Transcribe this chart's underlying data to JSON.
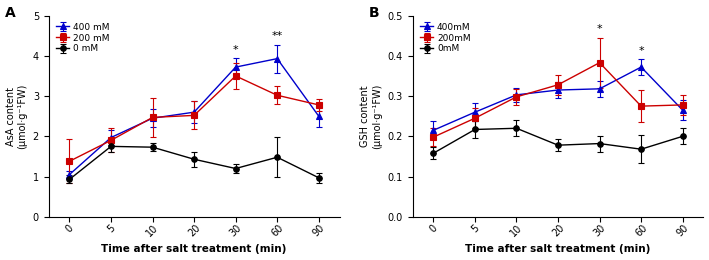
{
  "timepoints": [
    0,
    5,
    10,
    20,
    30,
    60,
    90
  ],
  "x_positions": [
    0,
    1,
    2,
    3,
    4,
    5,
    6
  ],
  "A_title": "A",
  "A_ylabel": "AsA content\n(μmol·g⁻¹FW)",
  "A_xlabel": "Time after salt treatment (min)",
  "A_ylim": [
    0,
    5
  ],
  "A_yticks": [
    0,
    1,
    2,
    3,
    4,
    5
  ],
  "A_400mM_mean": [
    1.05,
    1.97,
    2.45,
    2.6,
    3.72,
    3.93,
    2.5
  ],
  "A_400mM_err": [
    0.1,
    0.18,
    0.22,
    0.28,
    0.22,
    0.35,
    0.28
  ],
  "A_200mM_mean": [
    1.38,
    1.9,
    2.47,
    2.52,
    3.5,
    3.02,
    2.78
  ],
  "A_200mM_err": [
    0.55,
    0.3,
    0.48,
    0.35,
    0.32,
    0.22,
    0.15
  ],
  "A_0mM_mean": [
    0.93,
    1.75,
    1.73,
    1.43,
    1.2,
    1.48,
    0.97
  ],
  "A_0mM_err": [
    0.1,
    0.15,
    0.1,
    0.18,
    0.12,
    0.5,
    0.12
  ],
  "A_annot_30": "*",
  "A_annot_60": "**",
  "B_title": "B",
  "B_ylabel": "GSH content\n(μmol·g⁻¹FW)",
  "B_xlabel": "Time after salt treatment (min)",
  "B_ylim": [
    0.0,
    0.5
  ],
  "B_yticks": [
    0.0,
    0.1,
    0.2,
    0.3,
    0.4,
    0.5
  ],
  "B_400mM_mean": [
    0.215,
    0.26,
    0.303,
    0.315,
    0.318,
    0.372,
    0.265
  ],
  "B_400mM_err": [
    0.022,
    0.022,
    0.018,
    0.02,
    0.02,
    0.02,
    0.025
  ],
  "B_200mM_mean": [
    0.198,
    0.245,
    0.298,
    0.328,
    0.383,
    0.275,
    0.278
  ],
  "B_200mM_err": [
    0.022,
    0.025,
    0.02,
    0.025,
    0.062,
    0.04,
    0.025
  ],
  "B_0mM_mean": [
    0.158,
    0.217,
    0.22,
    0.178,
    0.182,
    0.168,
    0.2
  ],
  "B_0mM_err": [
    0.015,
    0.02,
    0.02,
    0.015,
    0.02,
    0.035,
    0.02
  ],
  "B_annot_30": "*",
  "B_annot_60": "*",
  "color_400": "#0000cc",
  "color_200": "#cc0000",
  "color_0": "#000000",
  "legend_A": [
    "400 mM",
    "200 mM",
    "0 mM"
  ],
  "legend_B": [
    "400mM",
    "200mM",
    "0mM"
  ]
}
